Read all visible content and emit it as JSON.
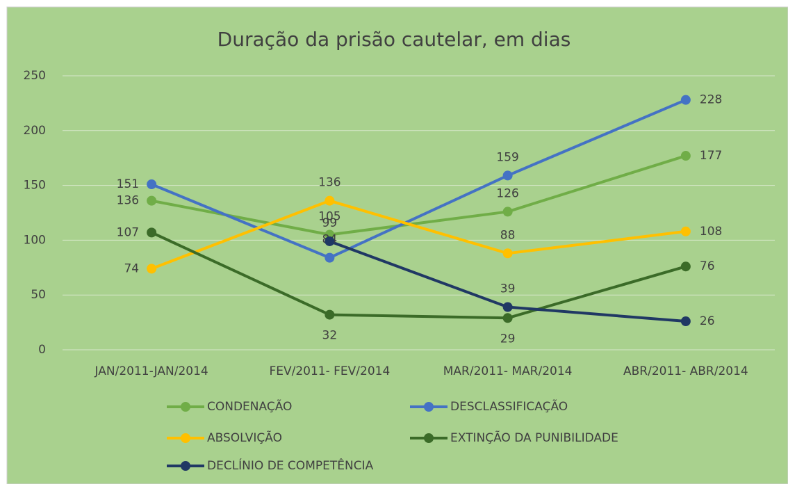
{
  "chart_data": {
    "type": "line",
    "title": "Duração da prisão cautelar, em dias",
    "categories": [
      "JAN/2011-JAN/2014",
      "FEV/2011- FEV/2014",
      "MAR/2011- MAR/2014",
      "ABR/2011- ABR/2014"
    ],
    "series": [
      {
        "name": "CONDENAÇÃO",
        "color": "#70ad47",
        "values": [
          136,
          105,
          126,
          177
        ]
      },
      {
        "name": "DESCLASSIFICAÇÃO",
        "color": "#4472c4",
        "values": [
          151,
          84,
          159,
          228
        ]
      },
      {
        "name": "ABSOLVIÇÃO",
        "color": "#ffc000",
        "values": [
          74,
          136,
          88,
          108
        ]
      },
      {
        "name": "EXTINÇÃO DA PUNIBILIDADE",
        "color": "#3b6b28",
        "values": [
          107,
          32,
          29,
          76
        ]
      },
      {
        "name": "DECLÍNIO DE COMPETÊNCIA",
        "color": "#203864",
        "values": [
          null,
          99,
          39,
          26
        ]
      }
    ],
    "ylim": [
      0,
      250
    ],
    "yticks": [
      0,
      50,
      100,
      150,
      200,
      250
    ],
    "grid": true
  }
}
